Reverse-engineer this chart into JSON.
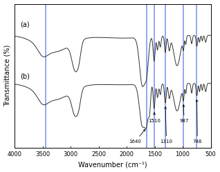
{
  "xlabel": "Wavenumber (cm⁻¹)",
  "ylabel": "Transmittance (%)",
  "xmin": 4000,
  "xmax": 500,
  "label_a": "(a)",
  "label_b": "(b)",
  "blue_lines": [
    3450,
    1640,
    1510,
    1310,
    987,
    748
  ],
  "spectra_color": "#303030",
  "blue_line_color": "#6688ee",
  "background_color": "#ffffff",
  "annots": [
    {
      "text": "1640",
      "xpeak": 1640,
      "xtext": 1700,
      "ytext": 0.03,
      "ha": "right"
    },
    {
      "text": "1510",
      "xpeak": 1510,
      "xtext": 1510,
      "ytext": 0.2,
      "ha": "center"
    },
    {
      "text": "1310",
      "xpeak": 1310,
      "xtext": 1310,
      "ytext": 0.05,
      "ha": "center"
    },
    {
      "text": "987",
      "xpeak": 987,
      "xtext": 987,
      "ytext": 0.2,
      "ha": "center"
    },
    {
      "text": "748",
      "xpeak": 748,
      "xtext": 748,
      "ytext": 0.05,
      "ha": "center"
    }
  ]
}
